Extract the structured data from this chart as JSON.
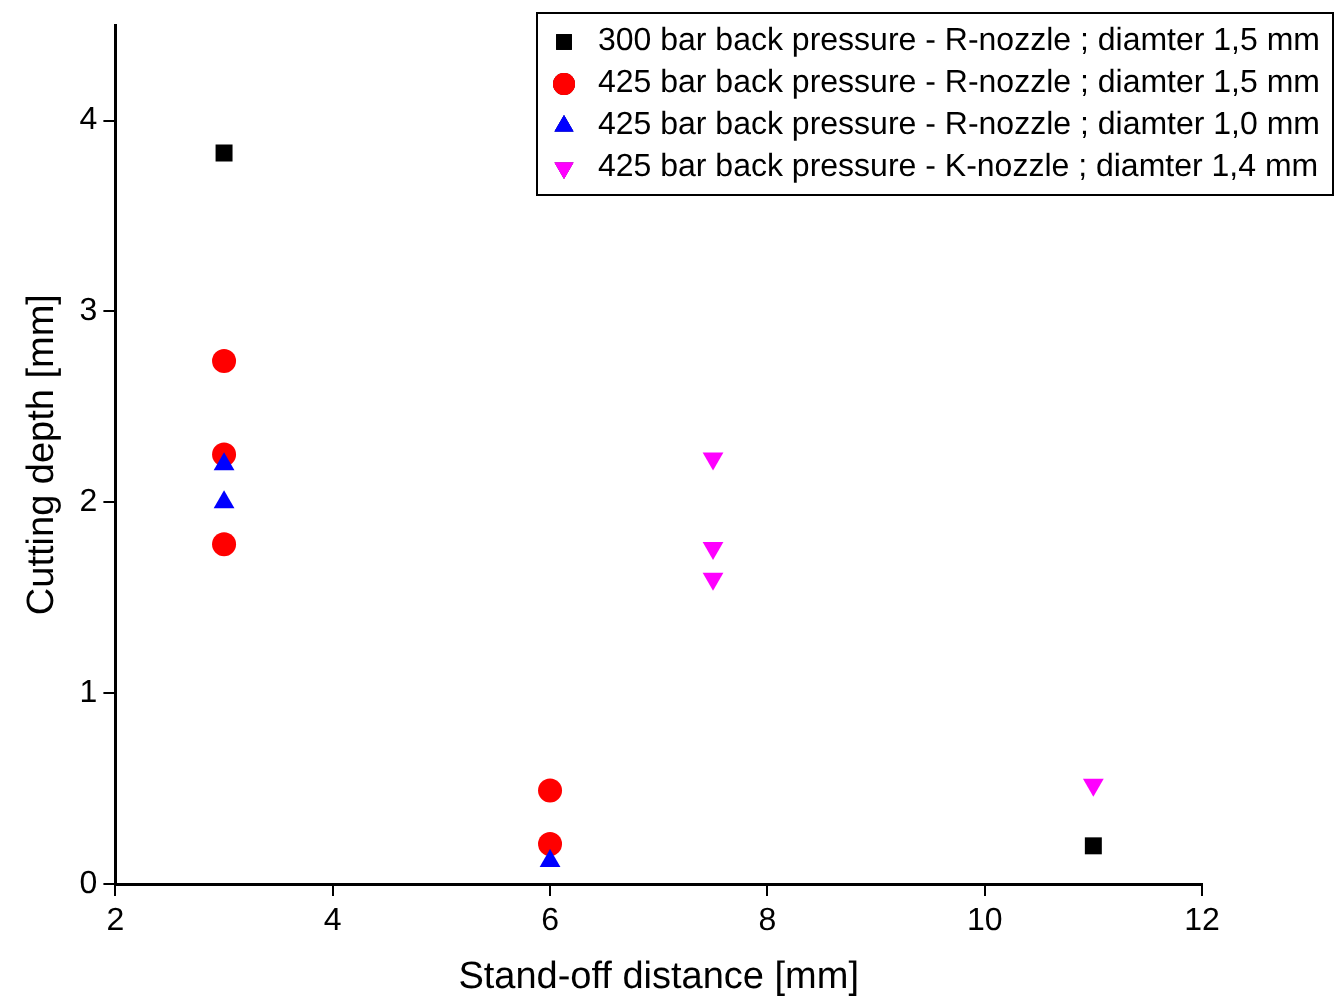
{
  "chart_data": {
    "type": "scatter",
    "xlabel": "Stand-off distance [mm]",
    "ylabel": "Cutting depth [mm]",
    "xlim": [
      2,
      12
    ],
    "xticks": [
      2,
      4,
      6,
      8,
      10,
      12
    ],
    "ylim": [
      0,
      4.5
    ],
    "yticks": [
      0,
      1,
      2,
      3,
      4
    ],
    "grid": false,
    "legend": "top right",
    "series": [
      {
        "name": "300 bar back pressure - R-nozzle ; diamter 1,5 mm",
        "color": "#000000",
        "marker": "square",
        "x": [
          3,
          11
        ],
        "values": [
          3.83,
          0.2
        ]
      },
      {
        "name": "425 bar back pressure - R-nozzle ; diamter 1,5 mm",
        "color": "#ff0000",
        "marker": "circle",
        "x": [
          3,
          3,
          3,
          6,
          6
        ],
        "values": [
          2.74,
          2.25,
          1.78,
          0.49,
          0.21
        ]
      },
      {
        "name": "425 bar back pressure - R-nozzle ; diamter 1,0 mm",
        "color": "#0000ff",
        "marker": "triangle",
        "x": [
          3,
          3,
          6
        ],
        "values": [
          2.2,
          2.0,
          0.12
        ]
      },
      {
        "name": "425 bar back pressure - K-nozzle ; diamter 1,4 mm",
        "color": "#ff00ff",
        "marker": "triangle-down",
        "x": [
          7.5,
          7.5,
          7.5,
          11
        ],
        "values": [
          2.23,
          1.76,
          1.6,
          0.52
        ]
      }
    ]
  }
}
